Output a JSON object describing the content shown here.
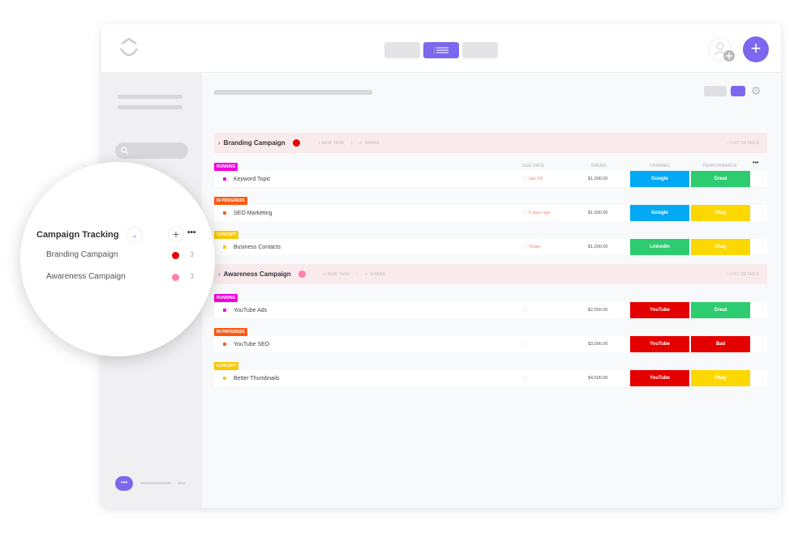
{
  "header": {
    "add_label": "+"
  },
  "colors": {
    "accent": "#7b68ee",
    "running": "#f100e0",
    "in_progress": "#fa5a14",
    "concept": "#f9c700",
    "google": "#03a9f4",
    "linkedin": "#2ecc71",
    "youtube": "#e50000",
    "great": "#2ecc71",
    "okay": "#fcd800",
    "bad": "#e50000"
  },
  "columns": {
    "due": "DUE DATE",
    "spend": "SPEND",
    "channel": "CHANNEL",
    "performance": "PERFORMANCE",
    "more": "•••"
  },
  "groups": [
    {
      "title": "Branding Campaign",
      "dot": "#e50000",
      "new_task": "+ NEW TASK",
      "share": "SHARE",
      "details": "LIST DETAILS",
      "tasks": [
        {
          "status": "RUNNING",
          "status_color": "#f100e0",
          "name": "Keyword Topic",
          "due": "Jan 24",
          "spend": "$1,000.00",
          "channel": "Google",
          "channel_color": "#03a9f4",
          "performance": "Great",
          "perf_color": "#2ecc71"
        },
        {
          "status": "IN PROGRESS",
          "status_color": "#fa5a14",
          "name": "SEO Marketing",
          "due": "5 days ago",
          "spend": "$1,000.00",
          "channel": "Google",
          "channel_color": "#03a9f4",
          "performance": "Okay",
          "perf_color": "#fcd800"
        },
        {
          "status": "CONCEPT",
          "status_color": "#f9c700",
          "name": "Business Contacts",
          "due": "Today",
          "spend": "$1,000.00",
          "channel": "LinkedIn",
          "channel_color": "#2ecc71",
          "performance": "Okay",
          "perf_color": "#fcd800"
        }
      ]
    },
    {
      "title": "Awareness Campaign",
      "dot": "#ff7fab",
      "new_task": "+ NEW TASK",
      "share": "SHARE",
      "details": "LIST DETAILS",
      "tasks": [
        {
          "status": "RUNNING",
          "status_color": "#f100e0",
          "name": "YouTube Ads",
          "due": "",
          "spend": "$2,550.00",
          "channel": "YouTube",
          "channel_color": "#e50000",
          "performance": "Great",
          "perf_color": "#2ecc71"
        },
        {
          "status": "IN PROGRESS",
          "status_color": "#fa5a14",
          "name": "YouTube SEO",
          "due": "",
          "spend": "$3,000.00",
          "channel": "YouTube",
          "channel_color": "#e50000",
          "performance": "Bad",
          "perf_color": "#e50000"
        },
        {
          "status": "CONCEPT",
          "status_color": "#f9c700",
          "name": "Better Thumbnails",
          "due": "",
          "spend": "$4,500.00",
          "channel": "YouTube",
          "channel_color": "#e50000",
          "performance": "Okay",
          "perf_color": "#fcd800"
        }
      ]
    }
  ],
  "sidebar_zoom": {
    "title": "Campaign Tracking",
    "lists": [
      {
        "name": "Branding Campaign",
        "dot": "#e50000",
        "count": "3"
      },
      {
        "name": "Awareness Campaign",
        "dot": "#ff7fab",
        "count": "3"
      }
    ]
  }
}
